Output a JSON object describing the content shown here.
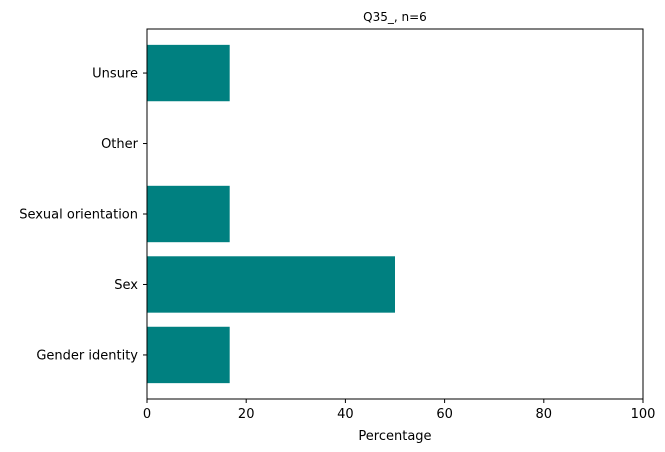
{
  "chart_data": {
    "type": "bar",
    "orientation": "horizontal",
    "title": "Q35_, n=6",
    "xlabel": "Percentage",
    "ylabel": "",
    "categories": [
      "Gender identity",
      "Sex",
      "Sexual orientation",
      "Other",
      "Unsure"
    ],
    "values": [
      16.67,
      50.0,
      16.67,
      0,
      16.67
    ],
    "xlim": [
      0,
      100
    ],
    "xticks": [
      "0",
      "20",
      "40",
      "60",
      "80",
      "100"
    ],
    "grid": false,
    "legend": "none",
    "bar_color": "#008080"
  }
}
